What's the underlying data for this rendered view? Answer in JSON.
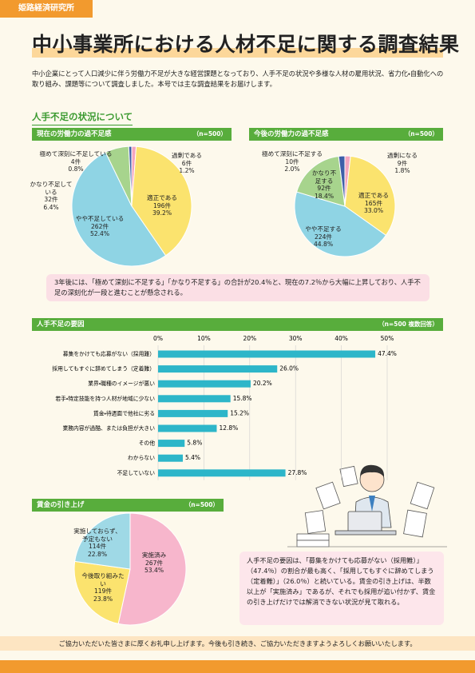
{
  "header": {
    "org": "姫路経済研究所",
    "title": "中小事業所における人材不足に関する調査結果",
    "intro": "中小企業にとって人口減少に伴う労働力不足が大きな経営課題となっており、人手不足の状況や多様な人材の雇用状況、省力化・自動化への取り組み、課題等について調査しました。本号では主な調査結果をお届けします。"
  },
  "section_title": "人手不足の状況について",
  "chart_data": [
    {
      "type": "pie",
      "title": "現在の労働力の過不足感",
      "note": "（n=500）",
      "categories": [
        "過剰である",
        "適正である",
        "やや不足している",
        "かなり不足している",
        "極めて深刻に不足している"
      ],
      "values": [
        1.2,
        39.2,
        52.4,
        6.4,
        0.8
      ],
      "value_labels": [
        "1.2%",
        "39.2%",
        "52.4%",
        "6.4%",
        "0.8%"
      ],
      "count_labels": [
        "6件",
        "196件",
        "262件",
        "32件",
        "4件"
      ],
      "colors": [
        "#f4a6bf",
        "#fbe36e",
        "#8fd4e4",
        "#a7d48d",
        "#3e5fa8"
      ]
    },
    {
      "type": "pie",
      "title": "今後の労働力の過不足感",
      "note": "（n=500）",
      "categories": [
        "過剰になる",
        "適正である",
        "やや不足する",
        "かなり不足する",
        "極めて深刻に不足する"
      ],
      "values": [
        1.8,
        33.0,
        44.8,
        18.4,
        2.0
      ],
      "value_labels": [
        "1.8%",
        "33.0%",
        "44.8%",
        "18.4%",
        "2.0%"
      ],
      "count_labels": [
        "9件",
        "165件",
        "224件",
        "92件",
        "10件"
      ],
      "colors": [
        "#f4a6bf",
        "#fbe36e",
        "#8fd4e4",
        "#a7d48d",
        "#3e5fa8"
      ]
    },
    {
      "type": "bar",
      "orientation": "horizontal",
      "title": "人手不足の要因",
      "note": "（n=500 複数回答）",
      "categories": [
        "募集をかけても応募がない（採用難）",
        "採用してもすぐに辞めてしまう（定着難）",
        "業界・職種のイメージが悪い",
        "若手・特定技能を持つ人材が地域に少ない",
        "賃金・待遇面で他社に劣る",
        "業務内容が過酷、または負担が大きい",
        "その他",
        "わからない",
        "不足していない"
      ],
      "values": [
        47.4,
        26.0,
        20.2,
        15.8,
        15.2,
        12.8,
        5.8,
        5.4,
        27.8
      ],
      "value_labels": [
        "47.4%",
        "26.0%",
        "20.2%",
        "15.8%",
        "15.2%",
        "12.8%",
        "5.8%",
        "5.4%",
        "27.8%"
      ],
      "xlim": [
        0,
        50
      ],
      "xticks": [
        {
          "value": 0,
          "label": "0%"
        },
        {
          "value": 10,
          "label": "10%"
        },
        {
          "value": 20,
          "label": "20%"
        },
        {
          "value": 30,
          "label": "30%"
        },
        {
          "value": 40,
          "label": "40%"
        },
        {
          "value": 50,
          "label": "50%"
        }
      ],
      "color": "#2db6c9",
      "grid": true
    },
    {
      "type": "pie",
      "title": "賃金の引き上げ",
      "note": "（n=500）",
      "categories": [
        "実施済み",
        "今後取り組みたい",
        "実施しておらず、予定もない"
      ],
      "values": [
        53.4,
        23.8,
        22.8
      ],
      "value_labels": [
        "53.4%",
        "23.8%",
        "22.8%"
      ],
      "count_labels": [
        "267件",
        "119件",
        "114件"
      ],
      "colors": [
        "#f7b6cc",
        "#fbe36e",
        "#9fd9e6"
      ]
    }
  ],
  "comment": "3年後には、「極めて深刻に不足する」「かなり不足する」の合計が20.4％と、現在の7.2％から大幅に上昇しており、人手不足の深刻化が一段と進むことが懸念される。",
  "summary": "人手不足の要因は、「募集をかけても応募がない（採用難）」（47.4％）の割合が最も高く、「採用してもすぐに辞めてしまう（定着難）」（26.0％）と続いている。賃金の引き上げは、半数以上が「実施済み」であるが、それでも採用が追い付かず、賃金の引き上げだけでは解消できない状況が見て取れる。",
  "footer": "ご協力いただいた皆さまに厚くお礼申し上げます。今後も引き続き、ご協力いただきますようよろしくお願いいたします。"
}
